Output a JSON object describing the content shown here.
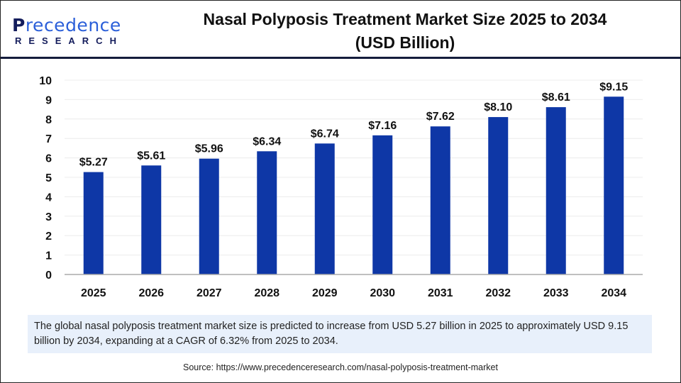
{
  "logo": {
    "line1": "Precedence",
    "line2": "RESEARCH"
  },
  "title_line1": "Nasal Polyposis Treatment Market Size 2025 to 2034",
  "title_line2": "(USD Billion)",
  "chart_data": {
    "type": "bar",
    "title": "Nasal Polyposis Treatment Market Size 2025 to 2034 (USD Billion)",
    "categories": [
      "2025",
      "2026",
      "2027",
      "2028",
      "2029",
      "2030",
      "2031",
      "2032",
      "2033",
      "2034"
    ],
    "values": [
      5.27,
      5.61,
      5.96,
      6.34,
      6.74,
      7.16,
      7.62,
      8.1,
      8.61,
      9.15
    ],
    "data_labels": [
      "$5.27",
      "$5.61",
      "$5.96",
      "$6.34",
      "$6.74",
      "$7.16",
      "$7.62",
      "$8.10",
      "$8.61",
      "$9.15"
    ],
    "yticks": [
      "0",
      "1",
      "2",
      "3",
      "4",
      "5",
      "6",
      "7",
      "8",
      "9",
      "10"
    ],
    "ylim": [
      0,
      10
    ],
    "xlabel": "",
    "ylabel": "",
    "grid": true,
    "bar_color": "#0e37a6"
  },
  "summary": "The global nasal polyposis treatment market size is predicted to increase from USD 5.27 billion in 2025 to approximately USD 9.15 billion by 2034, expanding at a CAGR of 6.32% from 2025 to 2034.",
  "source": "Source: https://www.precedenceresearch.com/nasal-polyposis-treatment-market"
}
